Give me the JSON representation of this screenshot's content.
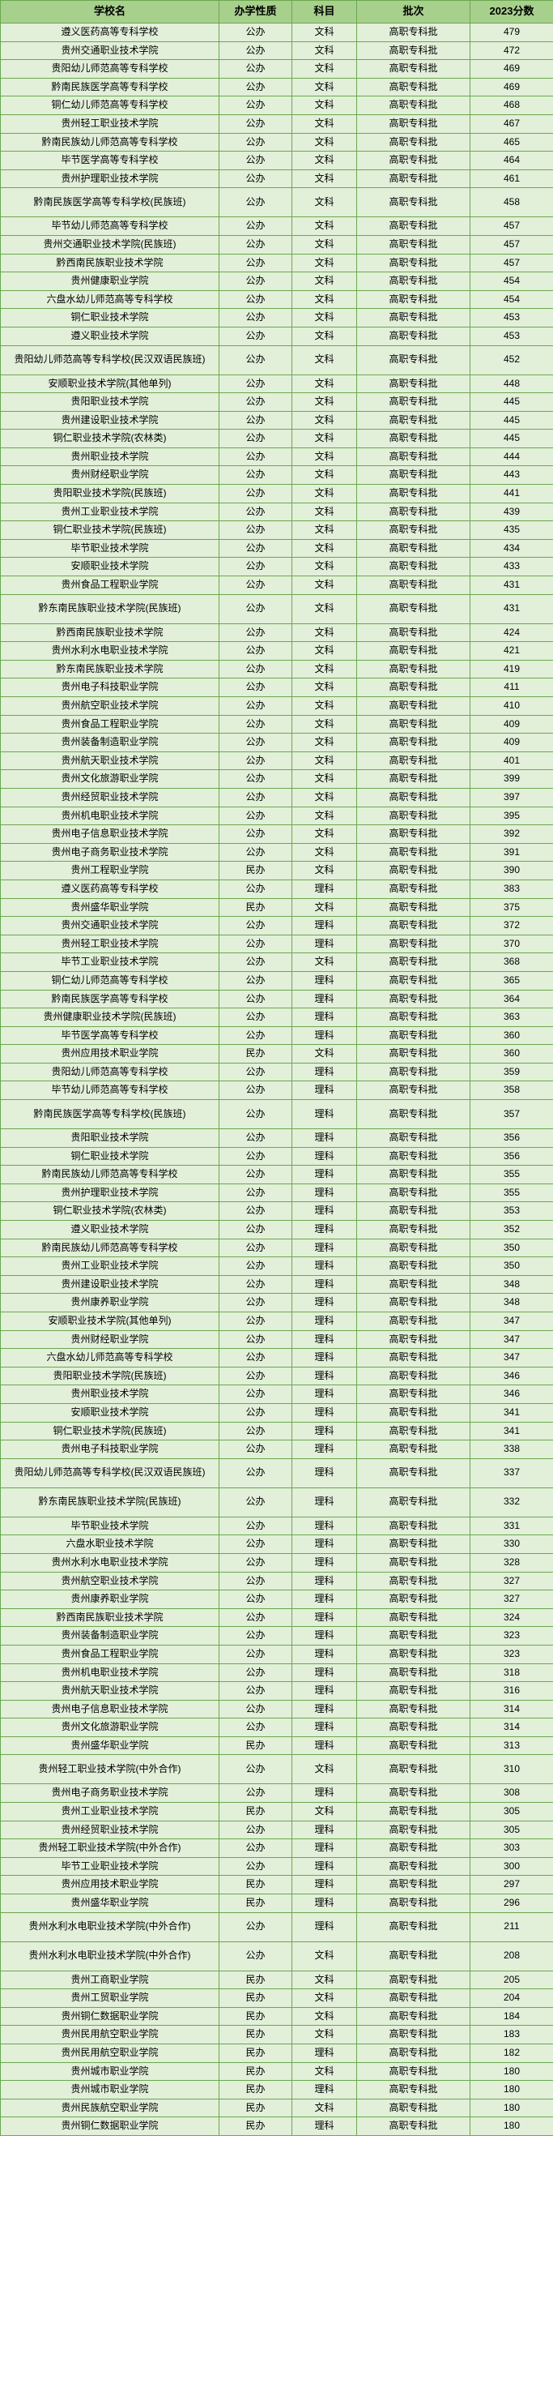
{
  "headers": {
    "name": "学校名",
    "nature": "办学性质",
    "subject": "科目",
    "batch": "批次",
    "score": "2023分数"
  },
  "colors": {
    "header_bg": "#a8d08d",
    "cell_bg": "#e2efd9",
    "border": "#6aa84f",
    "text": "#000000"
  },
  "rows": [
    {
      "name": "遵义医药高等专科学校",
      "nature": "公办",
      "subject": "文科",
      "batch": "高职专科批",
      "score": "479"
    },
    {
      "name": "贵州交通职业技术学院",
      "nature": "公办",
      "subject": "文科",
      "batch": "高职专科批",
      "score": "472"
    },
    {
      "name": "贵阳幼儿师范高等专科学校",
      "nature": "公办",
      "subject": "文科",
      "batch": "高职专科批",
      "score": "469"
    },
    {
      "name": "黔南民族医学高等专科学校",
      "nature": "公办",
      "subject": "文科",
      "batch": "高职专科批",
      "score": "469"
    },
    {
      "name": "铜仁幼儿师范高等专科学校",
      "nature": "公办",
      "subject": "文科",
      "batch": "高职专科批",
      "score": "468"
    },
    {
      "name": "贵州轻工职业技术学院",
      "nature": "公办",
      "subject": "文科",
      "batch": "高职专科批",
      "score": "467"
    },
    {
      "name": "黔南民族幼儿师范高等专科学校",
      "nature": "公办",
      "subject": "文科",
      "batch": "高职专科批",
      "score": "465"
    },
    {
      "name": "毕节医学高等专科学校",
      "nature": "公办",
      "subject": "文科",
      "batch": "高职专科批",
      "score": "464"
    },
    {
      "name": "贵州护理职业技术学院",
      "nature": "公办",
      "subject": "文科",
      "batch": "高职专科批",
      "score": "461"
    },
    {
      "name": "黔南民族医学高等专科学校(民族班)",
      "nature": "公办",
      "subject": "文科",
      "batch": "高职专科批",
      "score": "458",
      "tall": true
    },
    {
      "name": "毕节幼儿师范高等专科学校",
      "nature": "公办",
      "subject": "文科",
      "batch": "高职专科批",
      "score": "457"
    },
    {
      "name": "贵州交通职业技术学院(民族班)",
      "nature": "公办",
      "subject": "文科",
      "batch": "高职专科批",
      "score": "457"
    },
    {
      "name": "黔西南民族职业技术学院",
      "nature": "公办",
      "subject": "文科",
      "batch": "高职专科批",
      "score": "457"
    },
    {
      "name": "贵州健康职业学院",
      "nature": "公办",
      "subject": "文科",
      "batch": "高职专科批",
      "score": "454"
    },
    {
      "name": "六盘水幼儿师范高等专科学校",
      "nature": "公办",
      "subject": "文科",
      "batch": "高职专科批",
      "score": "454"
    },
    {
      "name": "铜仁职业技术学院",
      "nature": "公办",
      "subject": "文科",
      "batch": "高职专科批",
      "score": "453"
    },
    {
      "name": "遵义职业技术学院",
      "nature": "公办",
      "subject": "文科",
      "batch": "高职专科批",
      "score": "453"
    },
    {
      "name": "贵阳幼儿师范高等专科学校(民汉双语民族班)",
      "nature": "公办",
      "subject": "文科",
      "batch": "高职专科批",
      "score": "452",
      "tall": true
    },
    {
      "name": "安顺职业技术学院(其他单列)",
      "nature": "公办",
      "subject": "文科",
      "batch": "高职专科批",
      "score": "448"
    },
    {
      "name": "贵阳职业技术学院",
      "nature": "公办",
      "subject": "文科",
      "batch": "高职专科批",
      "score": "445"
    },
    {
      "name": "贵州建设职业技术学院",
      "nature": "公办",
      "subject": "文科",
      "batch": "高职专科批",
      "score": "445"
    },
    {
      "name": "铜仁职业技术学院(农林类)",
      "nature": "公办",
      "subject": "文科",
      "batch": "高职专科批",
      "score": "445"
    },
    {
      "name": "贵州职业技术学院",
      "nature": "公办",
      "subject": "文科",
      "batch": "高职专科批",
      "score": "444"
    },
    {
      "name": "贵州财经职业学院",
      "nature": "公办",
      "subject": "文科",
      "batch": "高职专科批",
      "score": "443"
    },
    {
      "name": "贵阳职业技术学院(民族班)",
      "nature": "公办",
      "subject": "文科",
      "batch": "高职专科批",
      "score": "441"
    },
    {
      "name": "贵州工业职业技术学院",
      "nature": "公办",
      "subject": "文科",
      "batch": "高职专科批",
      "score": "439"
    },
    {
      "name": "铜仁职业技术学院(民族班)",
      "nature": "公办",
      "subject": "文科",
      "batch": "高职专科批",
      "score": "435"
    },
    {
      "name": "毕节职业技术学院",
      "nature": "公办",
      "subject": "文科",
      "batch": "高职专科批",
      "score": "434"
    },
    {
      "name": "安顺职业技术学院",
      "nature": "公办",
      "subject": "文科",
      "batch": "高职专科批",
      "score": "433"
    },
    {
      "name": "贵州食品工程职业学院",
      "nature": "公办",
      "subject": "文科",
      "batch": "高职专科批",
      "score": "431"
    },
    {
      "name": "黔东南民族职业技术学院(民族班)",
      "nature": "公办",
      "subject": "文科",
      "batch": "高职专科批",
      "score": "431",
      "tall": true
    },
    {
      "name": "黔西南民族职业技术学院",
      "nature": "公办",
      "subject": "文科",
      "batch": "高职专科批",
      "score": "424"
    },
    {
      "name": "贵州水利水电职业技术学院",
      "nature": "公办",
      "subject": "文科",
      "batch": "高职专科批",
      "score": "421"
    },
    {
      "name": "黔东南民族职业技术学院",
      "nature": "公办",
      "subject": "文科",
      "batch": "高职专科批",
      "score": "419"
    },
    {
      "name": "贵州电子科技职业学院",
      "nature": "公办",
      "subject": "文科",
      "batch": "高职专科批",
      "score": "411"
    },
    {
      "name": "贵州航空职业技术学院",
      "nature": "公办",
      "subject": "文科",
      "batch": "高职专科批",
      "score": "410"
    },
    {
      "name": "贵州食品工程职业学院",
      "nature": "公办",
      "subject": "文科",
      "batch": "高职专科批",
      "score": "409"
    },
    {
      "name": "贵州装备制造职业学院",
      "nature": "公办",
      "subject": "文科",
      "batch": "高职专科批",
      "score": "409"
    },
    {
      "name": "贵州航天职业技术学院",
      "nature": "公办",
      "subject": "文科",
      "batch": "高职专科批",
      "score": "401"
    },
    {
      "name": "贵州文化旅游职业学院",
      "nature": "公办",
      "subject": "文科",
      "batch": "高职专科批",
      "score": "399"
    },
    {
      "name": "贵州经贸职业技术学院",
      "nature": "公办",
      "subject": "文科",
      "batch": "高职专科批",
      "score": "397"
    },
    {
      "name": "贵州机电职业技术学院",
      "nature": "公办",
      "subject": "文科",
      "batch": "高职专科批",
      "score": "395"
    },
    {
      "name": "贵州电子信息职业技术学院",
      "nature": "公办",
      "subject": "文科",
      "batch": "高职专科批",
      "score": "392"
    },
    {
      "name": "贵州电子商务职业技术学院",
      "nature": "公办",
      "subject": "文科",
      "batch": "高职专科批",
      "score": "391"
    },
    {
      "name": "贵州工程职业学院",
      "nature": "民办",
      "subject": "文科",
      "batch": "高职专科批",
      "score": "390"
    },
    {
      "name": "遵义医药高等专科学校",
      "nature": "公办",
      "subject": "理科",
      "batch": "高职专科批",
      "score": "383"
    },
    {
      "name": "贵州盛华职业学院",
      "nature": "民办",
      "subject": "文科",
      "batch": "高职专科批",
      "score": "375"
    },
    {
      "name": "贵州交通职业技术学院",
      "nature": "公办",
      "subject": "理科",
      "batch": "高职专科批",
      "score": "372"
    },
    {
      "name": "贵州轻工职业技术学院",
      "nature": "公办",
      "subject": "理科",
      "batch": "高职专科批",
      "score": "370"
    },
    {
      "name": "毕节工业职业技术学院",
      "nature": "公办",
      "subject": "文科",
      "batch": "高职专科批",
      "score": "368"
    },
    {
      "name": "铜仁幼儿师范高等专科学校",
      "nature": "公办",
      "subject": "理科",
      "batch": "高职专科批",
      "score": "365"
    },
    {
      "name": "黔南民族医学高等专科学校",
      "nature": "公办",
      "subject": "理科",
      "batch": "高职专科批",
      "score": "364"
    },
    {
      "name": "贵州健康职业技术学院(民族班)",
      "nature": "公办",
      "subject": "理科",
      "batch": "高职专科批",
      "score": "363"
    },
    {
      "name": "毕节医学高等专科学校",
      "nature": "公办",
      "subject": "理科",
      "batch": "高职专科批",
      "score": "360"
    },
    {
      "name": "贵州应用技术职业学院",
      "nature": "民办",
      "subject": "文科",
      "batch": "高职专科批",
      "score": "360"
    },
    {
      "name": "贵阳幼儿师范高等专科学校",
      "nature": "公办",
      "subject": "理科",
      "batch": "高职专科批",
      "score": "359"
    },
    {
      "name": "毕节幼儿师范高等专科学校",
      "nature": "公办",
      "subject": "理科",
      "batch": "高职专科批",
      "score": "358"
    },
    {
      "name": "黔南民族医学高等专科学校(民族班)",
      "nature": "公办",
      "subject": "理科",
      "batch": "高职专科批",
      "score": "357",
      "tall": true
    },
    {
      "name": "贵阳职业技术学院",
      "nature": "公办",
      "subject": "理科",
      "batch": "高职专科批",
      "score": "356"
    },
    {
      "name": "铜仁职业技术学院",
      "nature": "公办",
      "subject": "理科",
      "batch": "高职专科批",
      "score": "356"
    },
    {
      "name": "黔南民族幼儿师范高等专科学校",
      "nature": "公办",
      "subject": "理科",
      "batch": "高职专科批",
      "score": "355"
    },
    {
      "name": "贵州护理职业技术学院",
      "nature": "公办",
      "subject": "理科",
      "batch": "高职专科批",
      "score": "355"
    },
    {
      "name": "铜仁职业技术学院(农林类)",
      "nature": "公办",
      "subject": "理科",
      "batch": "高职专科批",
      "score": "353"
    },
    {
      "name": "遵义职业技术学院",
      "nature": "公办",
      "subject": "理科",
      "batch": "高职专科批",
      "score": "352"
    },
    {
      "name": "黔南民族幼儿师范高等专科学校",
      "nature": "公办",
      "subject": "理科",
      "batch": "高职专科批",
      "score": "350"
    },
    {
      "name": "贵州工业职业技术学院",
      "nature": "公办",
      "subject": "理科",
      "batch": "高职专科批",
      "score": "350"
    },
    {
      "name": "贵州建设职业技术学院",
      "nature": "公办",
      "subject": "理科",
      "batch": "高职专科批",
      "score": "348"
    },
    {
      "name": "贵州康养职业学院",
      "nature": "公办",
      "subject": "理科",
      "batch": "高职专科批",
      "score": "348"
    },
    {
      "name": "安顺职业技术学院(其他单列)",
      "nature": "公办",
      "subject": "理科",
      "batch": "高职专科批",
      "score": "347"
    },
    {
      "name": "贵州财经职业学院",
      "nature": "公办",
      "subject": "理科",
      "batch": "高职专科批",
      "score": "347"
    },
    {
      "name": "六盘水幼儿师范高等专科学校",
      "nature": "公办",
      "subject": "理科",
      "batch": "高职专科批",
      "score": "347"
    },
    {
      "name": "贵阳职业技术学院(民族班)",
      "nature": "公办",
      "subject": "理科",
      "batch": "高职专科批",
      "score": "346"
    },
    {
      "name": "贵州职业技术学院",
      "nature": "公办",
      "subject": "理科",
      "batch": "高职专科批",
      "score": "346"
    },
    {
      "name": "安顺职业技术学院",
      "nature": "公办",
      "subject": "理科",
      "batch": "高职专科批",
      "score": "341"
    },
    {
      "name": "铜仁职业技术学院(民族班)",
      "nature": "公办",
      "subject": "理科",
      "batch": "高职专科批",
      "score": "341"
    },
    {
      "name": "贵州电子科技职业学院",
      "nature": "公办",
      "subject": "理科",
      "batch": "高职专科批",
      "score": "338"
    },
    {
      "name": "贵阳幼儿师范高等专科学校(民汉双语民族班)",
      "nature": "公办",
      "subject": "理科",
      "batch": "高职专科批",
      "score": "337",
      "tall": true
    },
    {
      "name": "黔东南民族职业技术学院(民族班)",
      "nature": "公办",
      "subject": "理科",
      "batch": "高职专科批",
      "score": "332",
      "tall": true
    },
    {
      "name": "毕节职业技术学院",
      "nature": "公办",
      "subject": "理科",
      "batch": "高职专科批",
      "score": "331"
    },
    {
      "name": "六盘水职业技术学院",
      "nature": "公办",
      "subject": "理科",
      "batch": "高职专科批",
      "score": "330"
    },
    {
      "name": "贵州水利水电职业技术学院",
      "nature": "公办",
      "subject": "理科",
      "batch": "高职专科批",
      "score": "328"
    },
    {
      "name": "贵州航空职业技术学院",
      "nature": "公办",
      "subject": "理科",
      "batch": "高职专科批",
      "score": "327"
    },
    {
      "name": "贵州康养职业学院",
      "nature": "公办",
      "subject": "理科",
      "batch": "高职专科批",
      "score": "327"
    },
    {
      "name": "黔西南民族职业技术学院",
      "nature": "公办",
      "subject": "理科",
      "batch": "高职专科批",
      "score": "324"
    },
    {
      "name": "贵州装备制造职业学院",
      "nature": "公办",
      "subject": "理科",
      "batch": "高职专科批",
      "score": "323"
    },
    {
      "name": "贵州食品工程职业学院",
      "nature": "公办",
      "subject": "理科",
      "batch": "高职专科批",
      "score": "323"
    },
    {
      "name": "贵州机电职业技术学院",
      "nature": "公办",
      "subject": "理科",
      "batch": "高职专科批",
      "score": "318"
    },
    {
      "name": "贵州航天职业技术学院",
      "nature": "公办",
      "subject": "理科",
      "batch": "高职专科批",
      "score": "316"
    },
    {
      "name": "贵州电子信息职业技术学院",
      "nature": "公办",
      "subject": "理科",
      "batch": "高职专科批",
      "score": "314"
    },
    {
      "name": "贵州文化旅游职业学院",
      "nature": "公办",
      "subject": "理科",
      "batch": "高职专科批",
      "score": "314"
    },
    {
      "name": "贵州盛华职业学院",
      "nature": "民办",
      "subject": "理科",
      "batch": "高职专科批",
      "score": "313"
    },
    {
      "name": "贵州轻工职业技术学院(中外合作)",
      "nature": "公办",
      "subject": "文科",
      "batch": "高职专科批",
      "score": "310",
      "tall": true
    },
    {
      "name": "贵州电子商务职业技术学院",
      "nature": "公办",
      "subject": "理科",
      "batch": "高职专科批",
      "score": "308"
    },
    {
      "name": "贵州工业职业技术学院",
      "nature": "民办",
      "subject": "文科",
      "batch": "高职专科批",
      "score": "305"
    },
    {
      "name": "贵州经贸职业技术学院",
      "nature": "公办",
      "subject": "理科",
      "batch": "高职专科批",
      "score": "305"
    },
    {
      "name": "贵州轻工职业技术学院(中外合作)",
      "nature": "公办",
      "subject": "理科",
      "batch": "高职专科批",
      "score": "303"
    },
    {
      "name": "毕节工业职业技术学院",
      "nature": "公办",
      "subject": "理科",
      "batch": "高职专科批",
      "score": "300"
    },
    {
      "name": "贵州应用技术职业学院",
      "nature": "民办",
      "subject": "理科",
      "batch": "高职专科批",
      "score": "297"
    },
    {
      "name": "贵州盛华职业学院",
      "nature": "民办",
      "subject": "理科",
      "batch": "高职专科批",
      "score": "296"
    },
    {
      "name": "贵州水利水电职业技术学院(中外合作)",
      "nature": "公办",
      "subject": "理科",
      "batch": "高职专科批",
      "score": "211",
      "tall": true
    },
    {
      "name": "贵州水利水电职业技术学院(中外合作)",
      "nature": "公办",
      "subject": "文科",
      "batch": "高职专科批",
      "score": "208",
      "tall": true
    },
    {
      "name": "贵州工商职业学院",
      "nature": "民办",
      "subject": "文科",
      "batch": "高职专科批",
      "score": "205"
    },
    {
      "name": "贵州工贸职业学院",
      "nature": "民办",
      "subject": "文科",
      "batch": "高职专科批",
      "score": "204"
    },
    {
      "name": "贵州铜仁数据职业学院",
      "nature": "民办",
      "subject": "文科",
      "batch": "高职专科批",
      "score": "184"
    },
    {
      "name": "贵州民用航空职业学院",
      "nature": "民办",
      "subject": "文科",
      "batch": "高职专科批",
      "score": "183"
    },
    {
      "name": "贵州民用航空职业学院",
      "nature": "民办",
      "subject": "理科",
      "batch": "高职专科批",
      "score": "182"
    },
    {
      "name": "贵州城市职业学院",
      "nature": "民办",
      "subject": "文科",
      "batch": "高职专科批",
      "score": "180"
    },
    {
      "name": "贵州城市职业学院",
      "nature": "民办",
      "subject": "理科",
      "batch": "高职专科批",
      "score": "180"
    },
    {
      "name": "贵州民族航空职业学院",
      "nature": "民办",
      "subject": "文科",
      "batch": "高职专科批",
      "score": "180"
    },
    {
      "name": "贵州铜仁数据职业学院",
      "nature": "民办",
      "subject": "理科",
      "batch": "高职专科批",
      "score": "180"
    }
  ]
}
